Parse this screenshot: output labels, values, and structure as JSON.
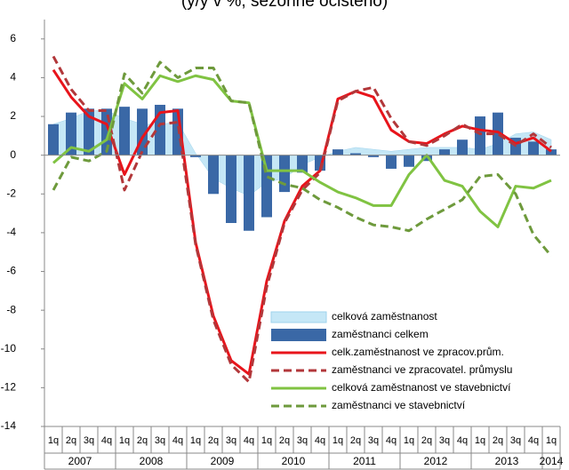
{
  "chart_data": {
    "type": "combo",
    "title": "(y/y v %, sezónně očištěno)",
    "categories": [
      "1q",
      "2q",
      "3q",
      "4q",
      "1q",
      "2q",
      "3q",
      "4q",
      "1q",
      "2q",
      "3q",
      "4q",
      "1q",
      "2q",
      "3q",
      "4q",
      "1q",
      "2q",
      "3q",
      "4q",
      "1q",
      "2q",
      "3q",
      "4q",
      "1q",
      "2q",
      "3q",
      "4q",
      "1q"
    ],
    "year_labels": [
      "2007",
      "2008",
      "2009",
      "2010",
      "2011",
      "2012",
      "2013",
      "2014"
    ],
    "ylim": [
      -14,
      7
    ],
    "yticks": [
      -14,
      -12,
      -10,
      -8,
      -6,
      -4,
      -2,
      0,
      2,
      4,
      6
    ],
    "series": [
      {
        "name": "celková zaměstnanost",
        "kind": "area",
        "color": "#c5e7f6",
        "values": [
          1.6,
          1.9,
          2.3,
          2.3,
          1.9,
          1.6,
          1.6,
          1.7,
          0.1,
          -1.2,
          -1.7,
          -2.1,
          -1.4,
          -1.2,
          -0.5,
          -0.1,
          0.2,
          0.4,
          0.3,
          0.2,
          0.3,
          0.4,
          0.4,
          0.4,
          0.3,
          0.6,
          1.1,
          1.2,
          0.8
        ]
      },
      {
        "name": "zaměstnanci celkem",
        "kind": "bar",
        "color": "#3a68a6",
        "values": [
          1.6,
          2.2,
          2.4,
          2.4,
          2.5,
          2.4,
          2.6,
          2.4,
          -0.1,
          -2.0,
          -3.5,
          -3.9,
          -3.2,
          -1.9,
          -0.9,
          -0.8,
          0.3,
          0.1,
          -0.1,
          -0.7,
          -0.6,
          -0.3,
          0.3,
          0.8,
          2.0,
          2.2,
          0.9,
          0.7,
          0.3
        ]
      },
      {
        "name": "celk.zaměstnanost ve zpracov.prům.",
        "kind": "line",
        "dashed": false,
        "color": "#e8141b",
        "values": [
          4.4,
          3.0,
          2.0,
          1.6,
          -1.0,
          0.9,
          2.2,
          2.3,
          -4.5,
          -8.3,
          -10.6,
          -11.3,
          -6.5,
          -3.4,
          -1.6,
          -0.8,
          2.9,
          3.3,
          3.0,
          1.3,
          0.7,
          0.6,
          1.1,
          1.5,
          1.3,
          1.2,
          0.6,
          0.9,
          0.2
        ]
      },
      {
        "name": "zaměstnanci ve zpracovatel. průmyslu",
        "kind": "line",
        "dashed": true,
        "color": "#b2373a",
        "values": [
          5.1,
          3.4,
          2.3,
          2.3,
          -1.8,
          0.2,
          1.6,
          1.7,
          -4.6,
          -8.5,
          -10.8,
          -11.7,
          -6.8,
          -3.5,
          -1.8,
          -0.9,
          2.8,
          3.3,
          3.5,
          1.9,
          0.7,
          0.5,
          1.0,
          1.6,
          1.1,
          1.1,
          0.5,
          1.1,
          0.4
        ]
      },
      {
        "name": "celková zaměstnanost ve stavebnictví",
        "kind": "line",
        "dashed": false,
        "color": "#80c342",
        "values": [
          -0.4,
          0.4,
          0.2,
          0.8,
          3.7,
          2.9,
          4.1,
          3.8,
          4.1,
          3.9,
          2.8,
          2.7,
          -0.8,
          -0.8,
          -0.8,
          -1.4,
          -1.9,
          -2.2,
          -2.6,
          -2.6,
          -1.0,
          0.0,
          -1.3,
          -1.6,
          -2.9,
          -3.7,
          -1.6,
          -1.7,
          -1.3
        ]
      },
      {
        "name": "zaměstnanci ve stavebnictví",
        "kind": "line",
        "dashed": true,
        "color": "#6e9a3c",
        "values": [
          -1.8,
          -0.1,
          -0.3,
          0.2,
          4.2,
          3.2,
          4.8,
          4.0,
          4.5,
          4.5,
          2.8,
          2.7,
          -1.1,
          -1.5,
          -1.7,
          -2.3,
          -2.7,
          -3.2,
          -3.6,
          -3.7,
          -3.9,
          -3.3,
          -2.8,
          -2.3,
          -1.1,
          -1.0,
          -2.0,
          -4.1,
          -5.2
        ]
      }
    ]
  }
}
